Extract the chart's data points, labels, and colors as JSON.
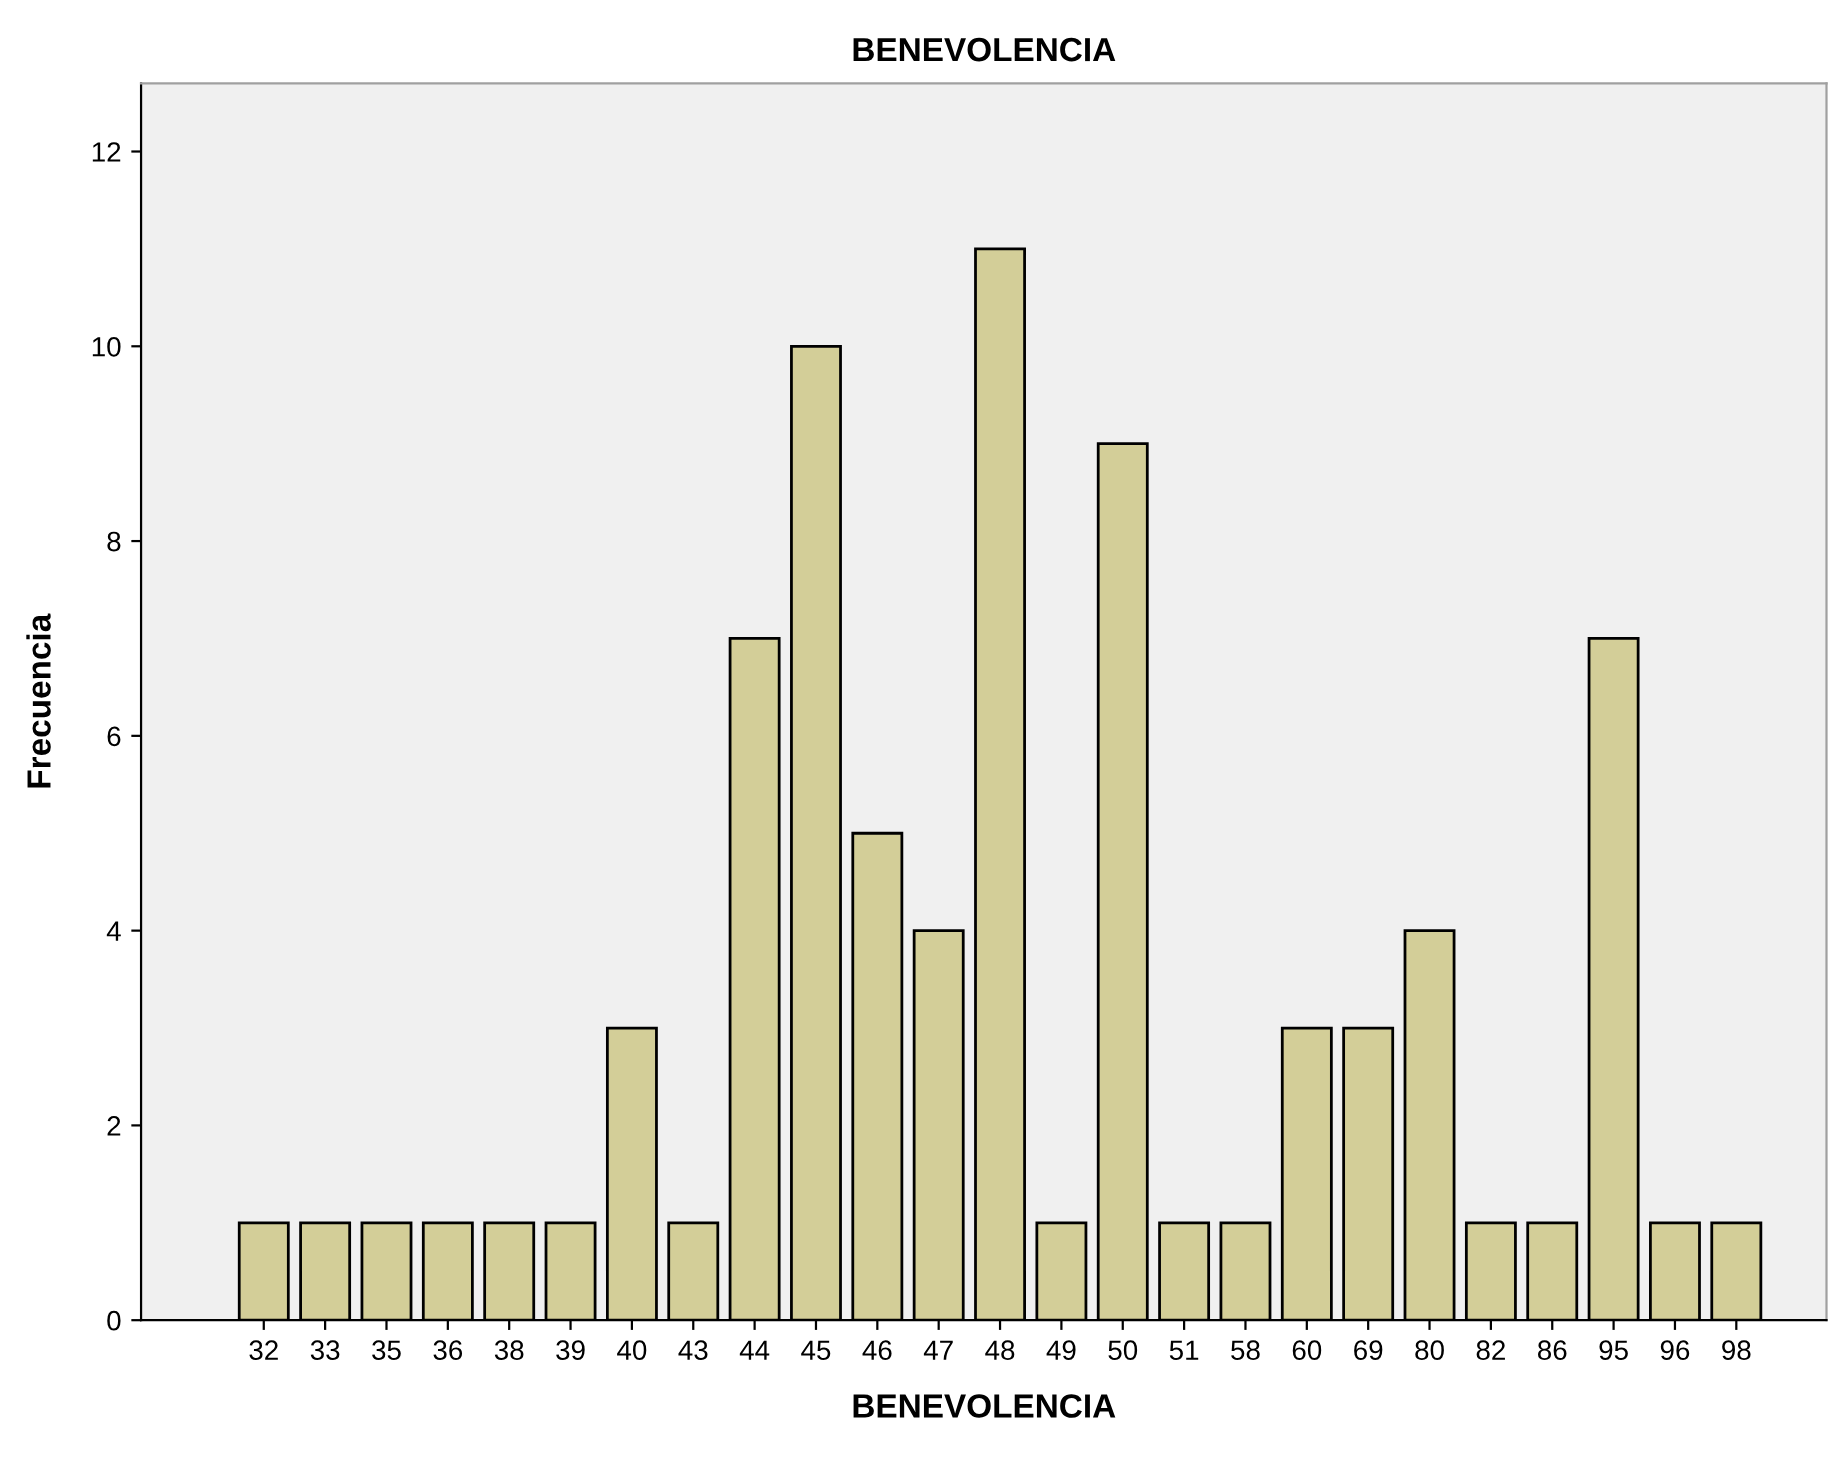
{
  "chart_data": {
    "type": "bar",
    "title": "BENEVOLENCIA",
    "xlabel": "BENEVOLENCIA",
    "ylabel": "Frecuencia",
    "categories": [
      "32",
      "33",
      "35",
      "36",
      "38",
      "39",
      "40",
      "43",
      "44",
      "45",
      "46",
      "47",
      "48",
      "49",
      "50",
      "51",
      "58",
      "60",
      "69",
      "80",
      "82",
      "86",
      "95",
      "96",
      "98"
    ],
    "values": [
      1,
      1,
      1,
      1,
      1,
      1,
      3,
      1,
      7,
      10,
      5,
      4,
      11,
      1,
      9,
      1,
      1,
      3,
      3,
      4,
      1,
      1,
      7,
      1,
      1
    ],
    "color": "#d3ce98",
    "ylim": [
      0,
      12.7
    ],
    "yticks": [
      0,
      2,
      4,
      6,
      8,
      10,
      12
    ],
    "grid": false,
    "legend": false
  }
}
